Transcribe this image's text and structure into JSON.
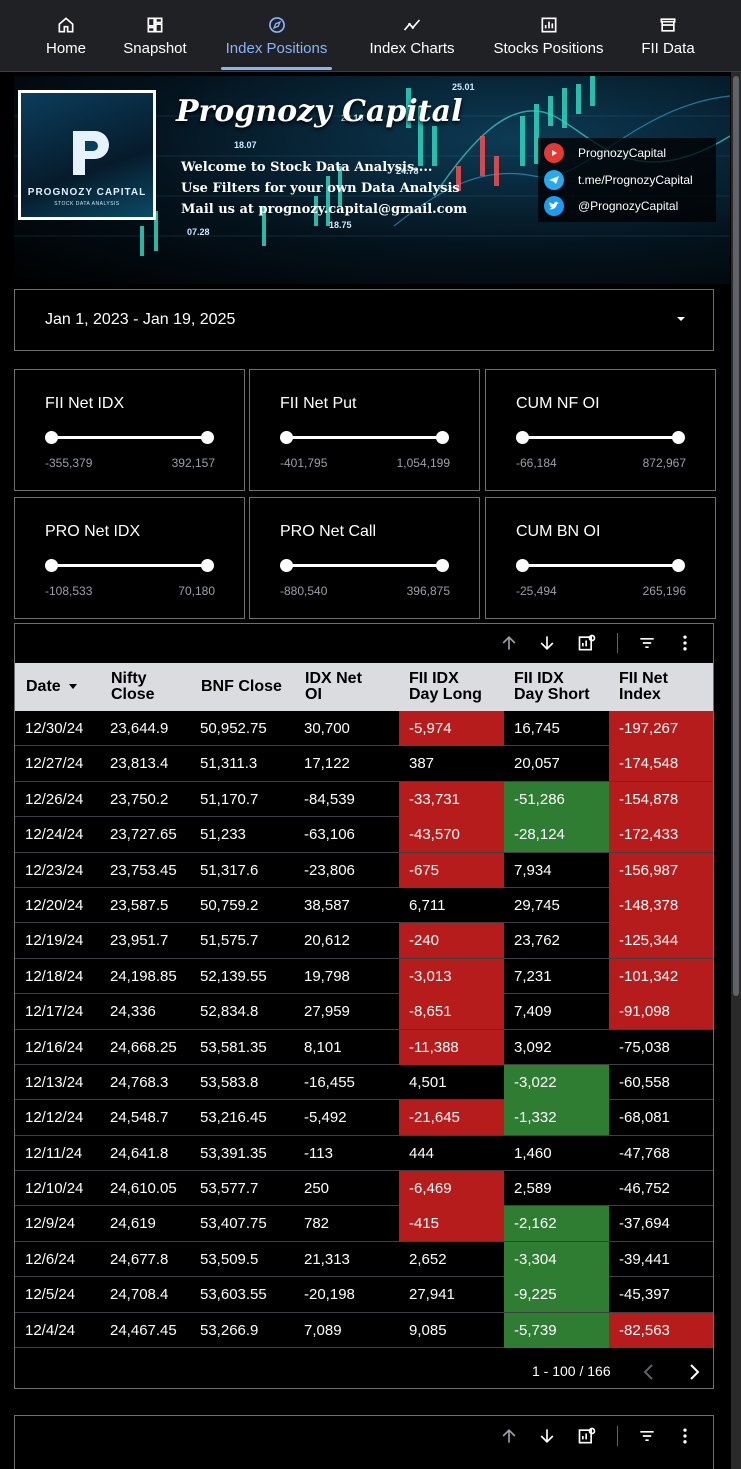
{
  "nav": {
    "items": [
      {
        "label": "Home",
        "icon": "home-icon"
      },
      {
        "label": "Snapshot",
        "icon": "dashboard-icon"
      },
      {
        "label": "Index Positions",
        "icon": "compass-icon",
        "active": true
      },
      {
        "label": "Index Charts",
        "icon": "trend-chart-icon"
      },
      {
        "label": "Stocks Positions",
        "icon": "bar-chart-icon"
      },
      {
        "label": "FII Data",
        "icon": "store-icon"
      }
    ],
    "active_color": "#8ab4f8"
  },
  "banner": {
    "title": "Prognozy Capital",
    "logo_brand": "PROGNOZY CAPITAL",
    "logo_sub": "STOCK DATA ANALYSIS",
    "lines": [
      "Welcome to Stock Data Analysis....",
      "Use Filters for your own Data Analysis",
      "Mail us at prognozy.capital@gmail.com"
    ],
    "ticks": [
      "25.01",
      "22.10",
      "18.07",
      "24.78",
      "18.75",
      "07.28"
    ],
    "social": [
      {
        "icon": "youtube-icon",
        "text": "PrognozyCapital",
        "color": "#e53935"
      },
      {
        "icon": "telegram-icon",
        "text": "t.me/PrognozyCapital",
        "color": "#29a9eb"
      },
      {
        "icon": "twitter-icon",
        "text": "@PrognozyCapital",
        "color": "#1d9bf0"
      }
    ]
  },
  "date_range": {
    "value": "Jan 1, 2023 - Jan 19, 2025"
  },
  "sliders": [
    {
      "title": "FII Net IDX",
      "min": "-355,379",
      "max": "392,157"
    },
    {
      "title": "FII Net Put",
      "min": "-401,795",
      "max": "1,054,199"
    },
    {
      "title": "CUM NF OI",
      "min": "-66,184",
      "max": "872,967"
    },
    {
      "title": "PRO Net IDX",
      "min": "-108,533",
      "max": "70,180"
    },
    {
      "title": "PRO Net Call",
      "min": "-880,540",
      "max": "396,875"
    },
    {
      "title": "CUM BN OI",
      "min": "-25,494",
      "max": "265,196"
    }
  ],
  "table": {
    "columns": [
      {
        "l1": "Date",
        "l2": "",
        "sort": true
      },
      {
        "l1": "Nifty",
        "l2": "Close"
      },
      {
        "l1": "BNF Close",
        "l2": ""
      },
      {
        "l1": "IDX Net",
        "l2": "OI"
      },
      {
        "l1": "FII IDX",
        "l2": "Day Long"
      },
      {
        "l1": "FII IDX",
        "l2": "Day Short"
      },
      {
        "l1": "FII Net",
        "l2": "Index"
      }
    ],
    "rows": [
      [
        "12/30/24",
        "23,644.9",
        "50,952.75",
        "30,700",
        "-5,974",
        "16,745",
        "-197,267"
      ],
      [
        "12/27/24",
        "23,813.4",
        "51,311.3",
        "17,122",
        "387",
        "20,057",
        "-174,548"
      ],
      [
        "12/26/24",
        "23,750.2",
        "51,170.7",
        "-84,539",
        "-33,731",
        "-51,286",
        "-154,878"
      ],
      [
        "12/24/24",
        "23,727.65",
        "51,233",
        "-63,106",
        "-43,570",
        "-28,124",
        "-172,433"
      ],
      [
        "12/23/24",
        "23,753.45",
        "51,317.6",
        "-23,806",
        "-675",
        "7,934",
        "-156,987"
      ],
      [
        "12/20/24",
        "23,587.5",
        "50,759.2",
        "38,587",
        "6,711",
        "29,745",
        "-148,378"
      ],
      [
        "12/19/24",
        "23,951.7",
        "51,575.7",
        "20,612",
        "-240",
        "23,762",
        "-125,344"
      ],
      [
        "12/18/24",
        "24,198.85",
        "52,139.55",
        "19,798",
        "-3,013",
        "7,231",
        "-101,342"
      ],
      [
        "12/17/24",
        "24,336",
        "52,834.8",
        "27,959",
        "-8,651",
        "7,409",
        "-91,098"
      ],
      [
        "12/16/24",
        "24,668.25",
        "53,581.35",
        "8,101",
        "-11,388",
        "3,092",
        "-75,038"
      ],
      [
        "12/13/24",
        "24,768.3",
        "53,583.8",
        "-16,455",
        "4,501",
        "-3,022",
        "-60,558"
      ],
      [
        "12/12/24",
        "24,548.7",
        "53,216.45",
        "-5,492",
        "-21,645",
        "-1,332",
        "-68,081"
      ],
      [
        "12/11/24",
        "24,641.8",
        "53,391.35",
        "-113",
        "444",
        "1,460",
        "-47,768"
      ],
      [
        "12/10/24",
        "24,610.05",
        "53,577.7",
        "250",
        "-6,469",
        "2,589",
        "-46,752"
      ],
      [
        "12/9/24",
        "24,619",
        "53,407.75",
        "782",
        "-415",
        "-2,162",
        "-37,694"
      ],
      [
        "12/6/24",
        "24,677.8",
        "53,509.5",
        "21,313",
        "2,652",
        "-3,304",
        "-39,441"
      ],
      [
        "12/5/24",
        "24,708.4",
        "53,603.55",
        "-20,198",
        "27,941",
        "-9,225",
        "-45,397"
      ],
      [
        "12/4/24",
        "24,467.45",
        "53,266.9",
        "7,089",
        "9,085",
        "-5,739",
        "-82,563"
      ]
    ],
    "highlights": {
      "long_red_rows": [
        0,
        2,
        3,
        4,
        6,
        7,
        8,
        9,
        11,
        13,
        14
      ],
      "short_green_rows": [
        2,
        3,
        10,
        11,
        14,
        15,
        16,
        17
      ],
      "net_red_rows": [
        0,
        1,
        2,
        3,
        4,
        5,
        6,
        7,
        8,
        17
      ]
    },
    "colors": {
      "red": "#b71c1c",
      "green": "#2e7d32",
      "header_bg": "#dadce0"
    },
    "pagination": "1 - 100 / 166"
  }
}
